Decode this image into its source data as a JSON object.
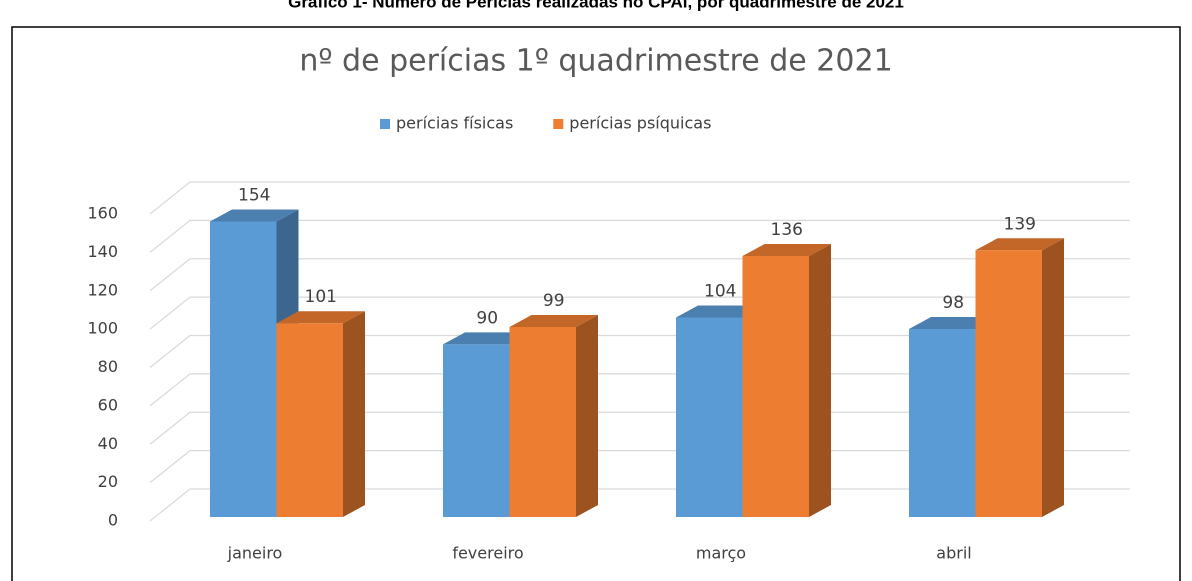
{
  "caption": "Gráfico 1- Número de Perícias realizadas no CPAI, por quadrimestre de 2021",
  "chart_data": {
    "type": "bar3d",
    "title": "nº de perícias 1º quadrimestre de 2021",
    "categories": [
      "janeiro",
      "fevereiro",
      "março",
      "abril"
    ],
    "series": [
      {
        "name": "perícias físicas",
        "color": "#5b9bd5",
        "values": [
          154,
          90,
          104,
          98
        ]
      },
      {
        "name": "perícias psíquicas",
        "color": "#ed7d31",
        "values": [
          101,
          99,
          136,
          139
        ]
      }
    ],
    "ylim": [
      0,
      160
    ],
    "yticks": [
      0,
      20,
      40,
      60,
      80,
      100,
      120,
      140,
      160
    ],
    "grid": true,
    "legend": "top"
  }
}
